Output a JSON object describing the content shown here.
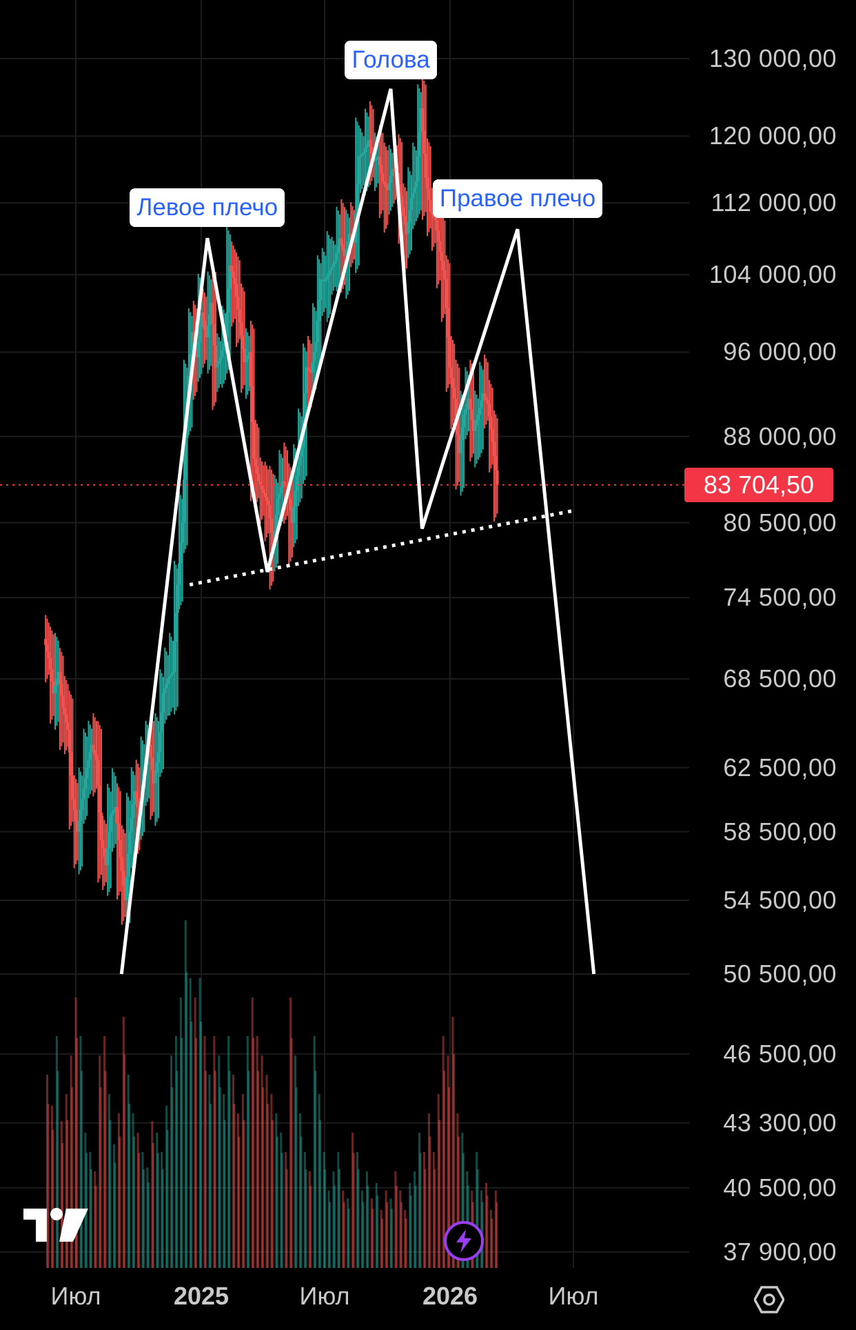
{
  "chart_data": {
    "type": "candlestick",
    "y_scale": "log",
    "y_ticks": [
      "130 000,00",
      "120 000,00",
      "112 000,00",
      "104 000,00",
      "96 000,00",
      "88 000,00",
      "80 500,00",
      "74 500,00",
      "68 500,00",
      "62 500,00",
      "58 500,00",
      "54 500,00",
      "50 500,00",
      "46 500,00",
      "43 300,00",
      "40 500,00",
      "37 900,00"
    ],
    "y_tick_values": [
      130000,
      120000,
      112000,
      104000,
      96000,
      88000,
      80500,
      74500,
      68500,
      62500,
      58500,
      54500,
      50500,
      46500,
      43300,
      40500,
      37900
    ],
    "x_ticks": [
      {
        "label": "Июл",
        "date": "2024-07-01",
        "bold": false
      },
      {
        "label": "2025",
        "date": "2025-01-01",
        "bold": true
      },
      {
        "label": "Июл",
        "date": "2025-07-01",
        "bold": false
      },
      {
        "label": "2026",
        "date": "2026-01-01",
        "bold": true
      },
      {
        "label": "Июл",
        "date": "2026-07-01",
        "bold": false
      }
    ],
    "current_price": {
      "label": "83 704,50",
      "value": 83704.5
    },
    "annotations": [
      {
        "text": "Левое плечо",
        "value": 108000
      },
      {
        "text": "Голова",
        "value": 126000
      },
      {
        "text": "Правое плечо",
        "value": 109000
      }
    ],
    "pattern_line": [
      {
        "date": "2024-09-06",
        "value": 50500
      },
      {
        "date": "2025-01-10",
        "value": 108000
      },
      {
        "date": "2025-04-08",
        "value": 76500
      },
      {
        "date": "2025-10-06",
        "value": 126000
      },
      {
        "date": "2025-11-21",
        "value": 80000
      },
      {
        "date": "2025-12-26",
        "value": 86500
      },
      {
        "date": "2026-04-10",
        "value": 109000
      },
      {
        "date": "2026-07-31",
        "value": 50500
      }
    ],
    "neckline": [
      {
        "date": "2024-12-15",
        "value": 75500
      },
      {
        "date": "2026-07-01",
        "value": 81500
      }
    ],
    "candles": {
      "start": "2024-05-20",
      "interval_days": 7,
      "close": [
        70000,
        67500,
        69000,
        66500,
        65000,
        60500,
        58500,
        60500,
        62500,
        64000,
        63000,
        58000,
        56500,
        59500,
        60000,
        57000,
        54500,
        58500,
        61000,
        59500,
        62000,
        64000,
        61500,
        63500,
        67500,
        68500,
        69000,
        75500,
        80500,
        91500,
        98000,
        95500,
        100000,
        97500,
        101000,
        94500,
        95500,
        97500,
        105000,
        103000,
        99000,
        95000,
        96000,
        86000,
        84000,
        83000,
        82000,
        78500,
        82500,
        84000,
        83500,
        80500,
        84500,
        87000,
        94500,
        94000,
        97000,
        103500,
        103500,
        104500,
        105500,
        108000,
        106000,
        108500,
        107500,
        117500,
        118000,
        119500,
        117000,
        117500,
        114500,
        113500,
        116000,
        115500,
        111500,
        108500,
        112500,
        114500,
        123500,
        115000,
        111000,
        110000,
        106500,
        103500,
        94500,
        91500,
        86500,
        90000,
        91500,
        88500,
        90000,
        92000,
        91000,
        87500,
        83700
      ],
      "vol": [
        0.5,
        0.42,
        0.6,
        0.38,
        0.45,
        0.55,
        0.7,
        0.6,
        0.35,
        0.3,
        0.25,
        0.55,
        0.6,
        0.45,
        0.32,
        0.4,
        0.65,
        0.5,
        0.4,
        0.35,
        0.3,
        0.26,
        0.38,
        0.35,
        0.3,
        0.42,
        0.55,
        0.6,
        0.7,
        0.9,
        0.75,
        0.7,
        0.75,
        0.6,
        0.5,
        0.6,
        0.55,
        0.45,
        0.6,
        0.5,
        0.4,
        0.45,
        0.6,
        0.7,
        0.6,
        0.55,
        0.5,
        0.45,
        0.4,
        0.35,
        0.3,
        0.7,
        0.55,
        0.4,
        0.3,
        0.25,
        0.6,
        0.45,
        0.3,
        0.2,
        0.25,
        0.3,
        0.2,
        0.18,
        0.35,
        0.3,
        0.2,
        0.25,
        0.18,
        0.22,
        0.15,
        0.2,
        0.18,
        0.25,
        0.2,
        0.15,
        0.22,
        0.25,
        0.35,
        0.3,
        0.4,
        0.3,
        0.45,
        0.6,
        0.55,
        0.65,
        0.4,
        0.35,
        0.25,
        0.2,
        0.3,
        0.2,
        0.22,
        0.15,
        0.2
      ]
    },
    "grid": true
  },
  "colors": {
    "up": "#26a69a",
    "down": "#ef5350",
    "background": "#000000",
    "pattern": "#ffffff",
    "price_line": "#f23645"
  },
  "icons": {
    "settings": "settings-hexagon-icon",
    "logo": "tradingview-logo-icon",
    "lightning": "lightning-icon"
  }
}
